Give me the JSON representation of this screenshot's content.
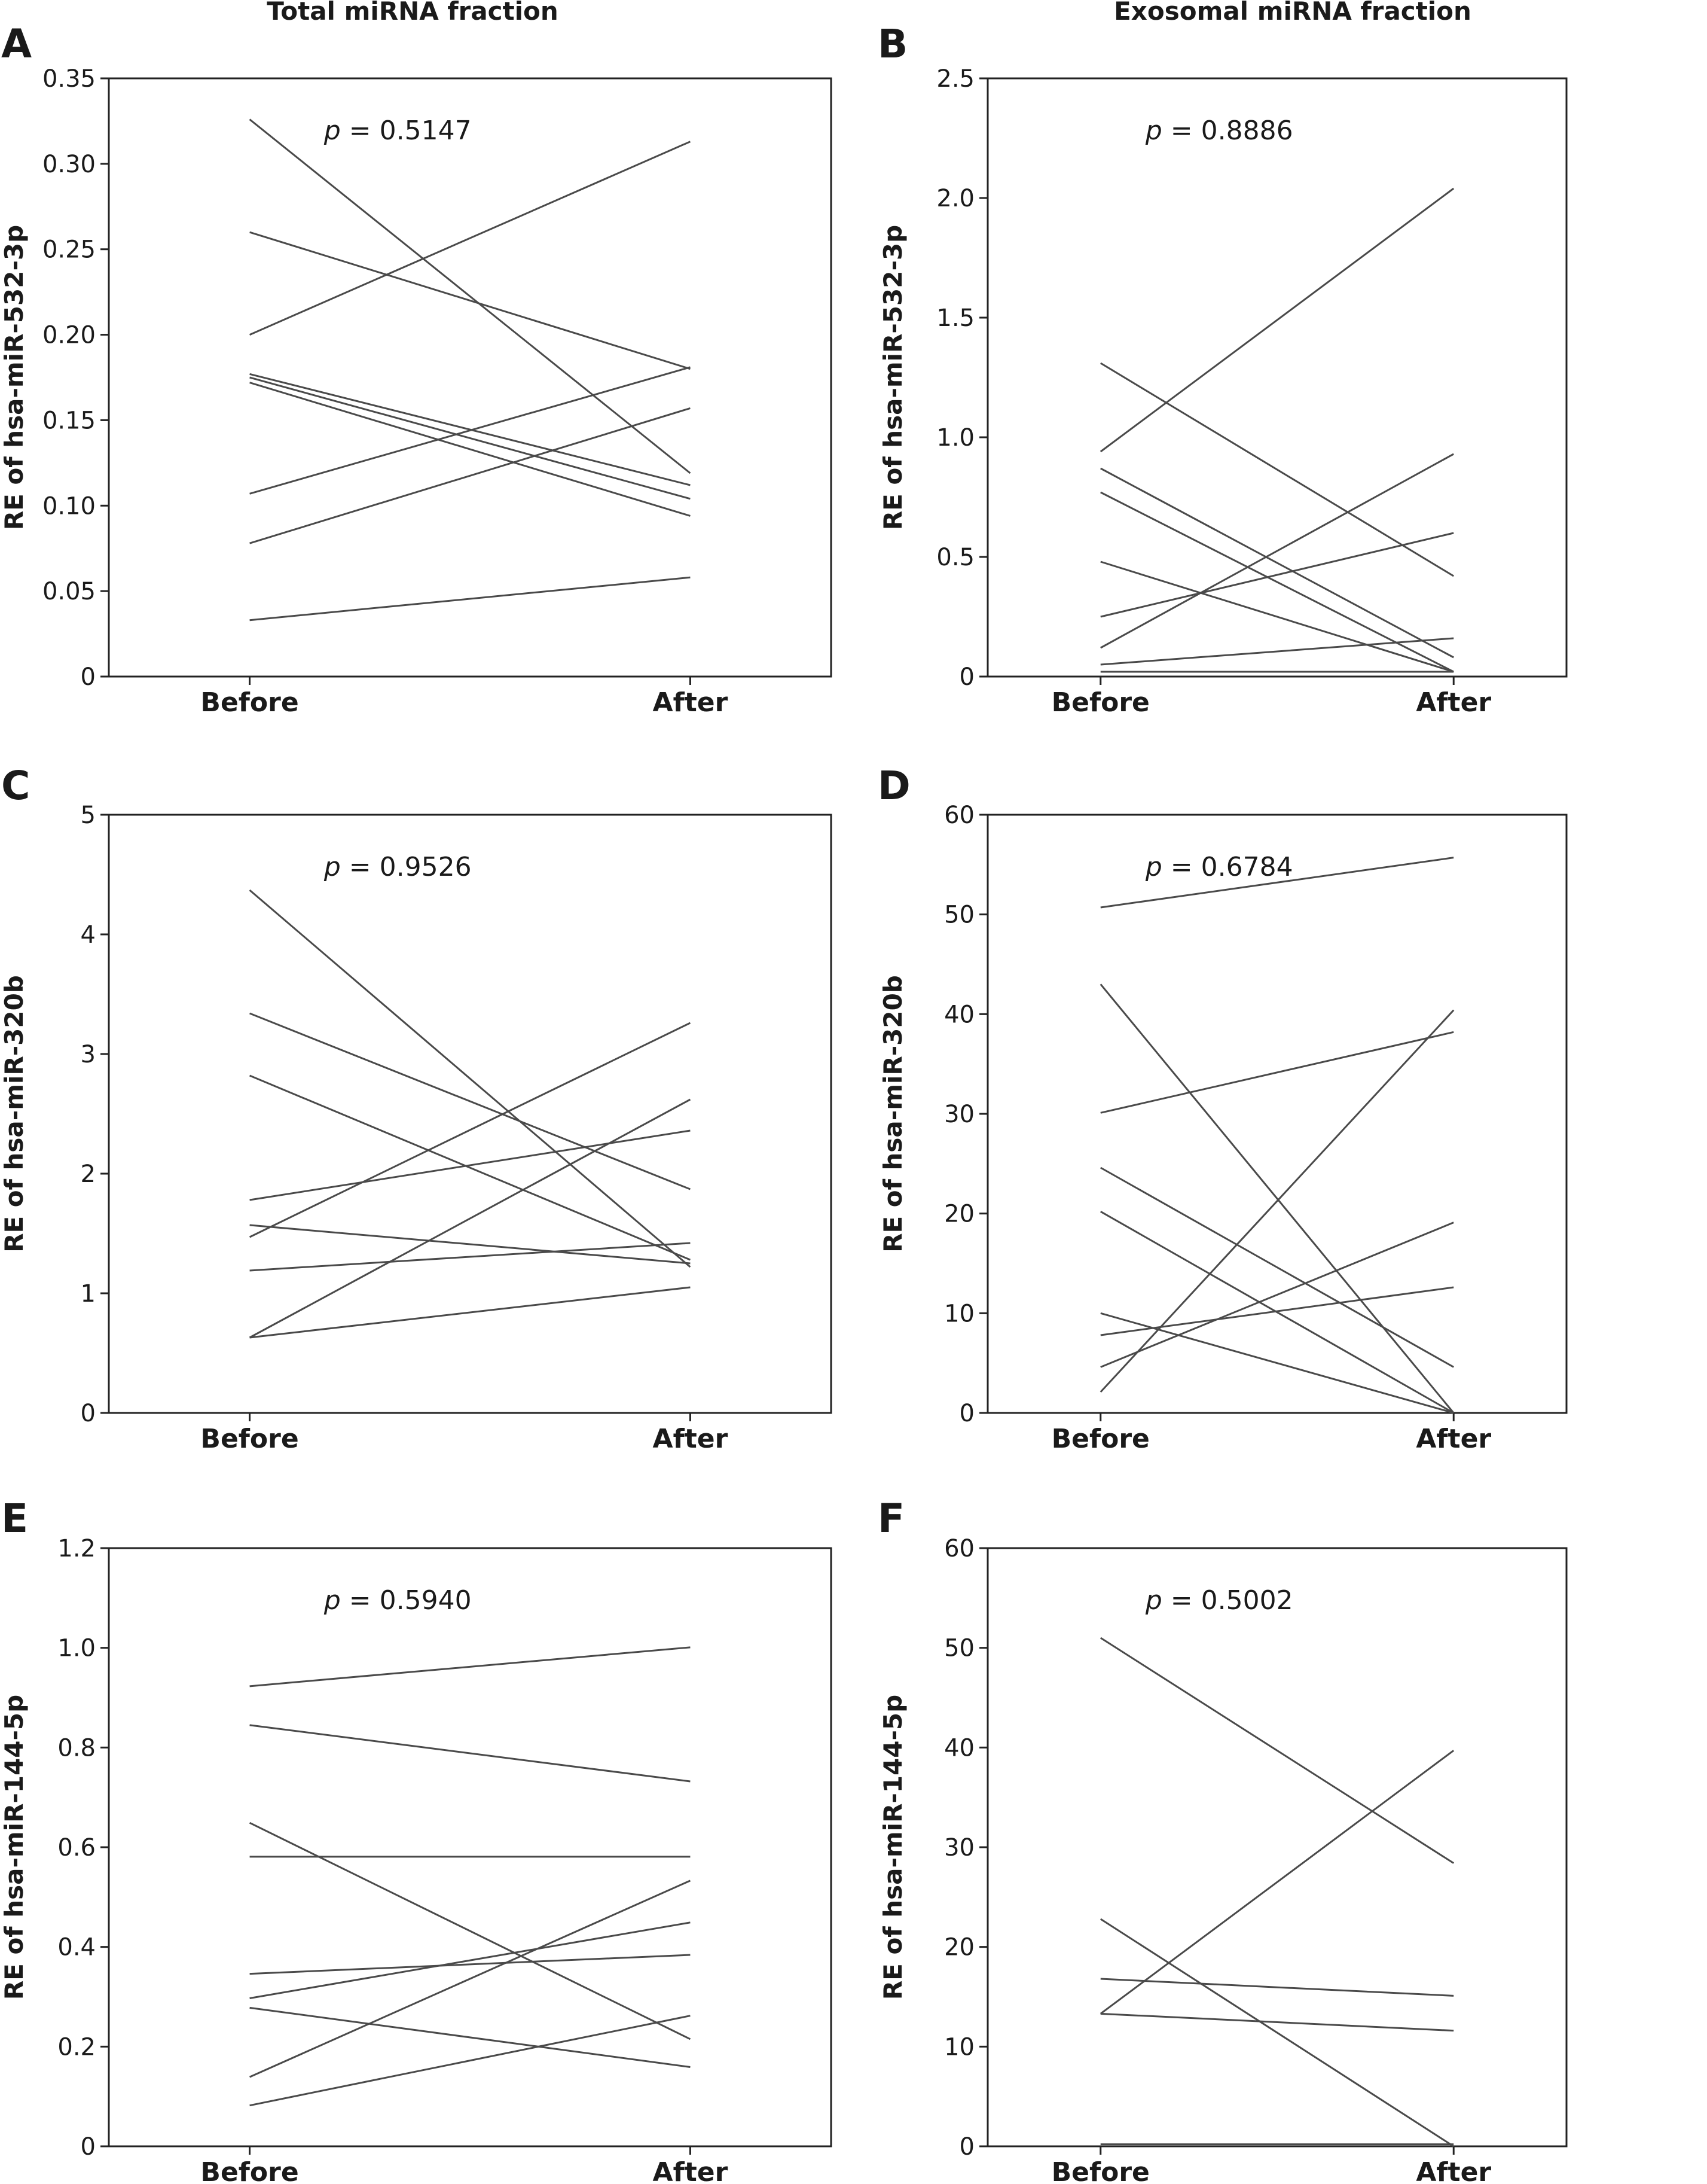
{
  "column_titles": [
    "Total miRNA fraction",
    "Exosomal miRNA fraction"
  ],
  "chart_data": [
    {
      "panel": "A",
      "type": "line",
      "ylabel": "RE of hsa-miR-532-3p",
      "categories": [
        "Before",
        "After"
      ],
      "yticks": [
        "0",
        "0.05",
        "0.10",
        "0.15",
        "0.20",
        "0.25",
        "0.30",
        "0.35"
      ],
      "ylim": [
        0,
        0.35
      ],
      "p_label": "p",
      "p_value": "= 0.5147",
      "series": [
        {
          "values": [
            0.326,
            0.119
          ]
        },
        {
          "values": [
            0.26,
            0.18
          ]
        },
        {
          "values": [
            0.2,
            0.313
          ]
        },
        {
          "values": [
            0.177,
            0.112
          ]
        },
        {
          "values": [
            0.175,
            0.104
          ]
        },
        {
          "values": [
            0.172,
            0.094
          ]
        },
        {
          "values": [
            0.107,
            0.181
          ]
        },
        {
          "values": [
            0.078,
            0.157
          ]
        },
        {
          "values": [
            0.033,
            0.058
          ]
        }
      ]
    },
    {
      "panel": "B",
      "type": "line",
      "ylabel": "RE of hsa-miR-532-3p",
      "categories": [
        "Before",
        "After"
      ],
      "yticks": [
        "0",
        "0.5",
        "1.0",
        "1.5",
        "2.0",
        "2.5"
      ],
      "ylim": [
        0,
        2.5
      ],
      "p_label": "p",
      "p_value": "= 0.8886",
      "series": [
        {
          "values": [
            1.31,
            0.42
          ]
        },
        {
          "values": [
            0.94,
            2.04
          ]
        },
        {
          "values": [
            0.87,
            0.08
          ]
        },
        {
          "values": [
            0.77,
            0.02
          ]
        },
        {
          "values": [
            0.48,
            0.02
          ]
        },
        {
          "values": [
            0.25,
            0.6
          ]
        },
        {
          "values": [
            0.12,
            0.93
          ]
        },
        {
          "values": [
            0.05,
            0.16
          ]
        },
        {
          "values": [
            0.02,
            0.02
          ]
        }
      ]
    },
    {
      "panel": "C",
      "type": "line",
      "ylabel": "RE of hsa-miR-320b",
      "categories": [
        "Before",
        "After"
      ],
      "yticks": [
        "0",
        "1",
        "2",
        "3",
        "4",
        "5"
      ],
      "ylim": [
        0,
        5
      ],
      "p_label": "p",
      "p_value": "= 0.9526",
      "series": [
        {
          "values": [
            4.37,
            1.22
          ]
        },
        {
          "values": [
            3.34,
            1.87
          ]
        },
        {
          "values": [
            2.82,
            1.28
          ]
        },
        {
          "values": [
            1.78,
            2.36
          ]
        },
        {
          "values": [
            1.57,
            1.25
          ]
        },
        {
          "values": [
            1.47,
            3.26
          ]
        },
        {
          "values": [
            1.19,
            1.42
          ]
        },
        {
          "values": [
            0.63,
            2.62
          ]
        },
        {
          "values": [
            0.63,
            1.05
          ]
        }
      ]
    },
    {
      "panel": "D",
      "type": "line",
      "ylabel": "RE of hsa-miR-320b",
      "categories": [
        "Before",
        "After"
      ],
      "yticks": [
        "0",
        "10",
        "20",
        "30",
        "40",
        "50",
        "60"
      ],
      "ylim": [
        0,
        60
      ],
      "p_label": "p",
      "p_value": "= 0.6784",
      "series": [
        {
          "values": [
            50.7,
            55.7
          ]
        },
        {
          "values": [
            43.0,
            0.0
          ]
        },
        {
          "values": [
            30.1,
            38.2
          ]
        },
        {
          "values": [
            24.6,
            4.6
          ]
        },
        {
          "values": [
            20.2,
            0.0
          ]
        },
        {
          "values": [
            10.0,
            0.0
          ]
        },
        {
          "values": [
            7.8,
            12.6
          ]
        },
        {
          "values": [
            4.6,
            19.1
          ]
        },
        {
          "values": [
            2.1,
            40.4
          ]
        }
      ]
    },
    {
      "panel": "E",
      "type": "line",
      "ylabel": "RE of hsa-miR-144-5p",
      "categories": [
        "Before",
        "After"
      ],
      "yticks": [
        "0",
        "0.2",
        "0.4",
        "0.6",
        "0.8",
        "1.0",
        "1.2"
      ],
      "ylim": [
        0,
        1.2
      ],
      "p_label": "p",
      "p_value": "= 0.5940",
      "series": [
        {
          "values": [
            0.923,
            1.001
          ]
        },
        {
          "values": [
            0.845,
            0.732
          ]
        },
        {
          "values": [
            0.649,
            0.215
          ]
        },
        {
          "values": [
            0.581,
            0.581
          ]
        },
        {
          "values": [
            0.346,
            0.384
          ]
        },
        {
          "values": [
            0.297,
            0.449
          ]
        },
        {
          "values": [
            0.278,
            0.159
          ]
        },
        {
          "values": [
            0.139,
            0.533
          ]
        },
        {
          "values": [
            0.082,
            0.262
          ]
        }
      ]
    },
    {
      "panel": "F",
      "type": "line",
      "ylabel": "RE of hsa-miR-144-5p",
      "categories": [
        "Before",
        "After"
      ],
      "yticks": [
        "0",
        "10",
        "20",
        "30",
        "40",
        "50",
        "60"
      ],
      "ylim": [
        0,
        60
      ],
      "p_label": "p",
      "p_value": "= 0.5002",
      "series": [
        {
          "values": [
            51.0,
            28.4
          ]
        },
        {
          "values": [
            22.8,
            0.0
          ]
        },
        {
          "values": [
            16.8,
            15.1
          ]
        },
        {
          "values": [
            13.3,
            39.7
          ]
        },
        {
          "values": [
            13.3,
            11.6
          ]
        },
        {
          "values": [
            0.2,
            0.2
          ]
        }
      ]
    }
  ]
}
